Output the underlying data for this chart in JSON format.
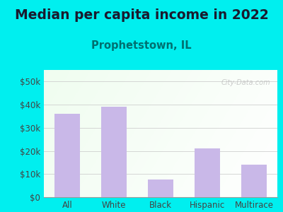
{
  "title": "Median per capita income in 2022",
  "subtitle": "Prophetstown, IL",
  "categories": [
    "All",
    "White",
    "Black",
    "Hispanic",
    "Multirace"
  ],
  "values": [
    36000,
    39000,
    7500,
    21000,
    14000
  ],
  "bar_color": "#c9b8e8",
  "background_color": "#00efef",
  "title_color": "#1a1a2e",
  "subtitle_color": "#007070",
  "tick_color": "#444444",
  "grid_color": "#cccccc",
  "ylim": [
    0,
    55000
  ],
  "yticks": [
    0,
    10000,
    20000,
    30000,
    40000,
    50000
  ],
  "ytick_labels": [
    "$0",
    "$10k",
    "$20k",
    "$30k",
    "$40k",
    "$50k"
  ],
  "title_fontsize": 13.5,
  "subtitle_fontsize": 10.5,
  "tick_fontsize": 8.5,
  "watermark_text": "City-Data.com"
}
